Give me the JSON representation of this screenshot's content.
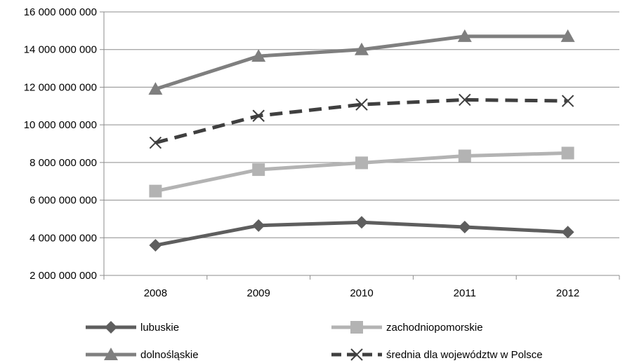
{
  "chart_data": {
    "type": "line",
    "title": "",
    "xlabel": "",
    "ylabel": "",
    "categories": [
      "2008",
      "2009",
      "2010",
      "2011",
      "2012"
    ],
    "ylim": [
      2000000000,
      16000000000
    ],
    "yticks": [
      2000000000,
      4000000000,
      6000000000,
      8000000000,
      10000000000,
      12000000000,
      14000000000,
      16000000000
    ],
    "ytick_labels": [
      "2 000 000 000",
      "4 000 000 000",
      "6 000 000 000",
      "8 000 000 000",
      "10 000 000 000",
      "12 000 000 000",
      "14 000 000 000",
      "16 000 000 000"
    ],
    "grid": "horizontal",
    "legend_position": "bottom",
    "series": [
      {
        "name": "lubuskie",
        "values": [
          3600000000,
          4650000000,
          4820000000,
          4570000000,
          4300000000
        ],
        "color": "#5e5e5e",
        "marker": "diamond",
        "dashed": false
      },
      {
        "name": "zachodniopomorskie",
        "values": [
          6480000000,
          7620000000,
          7980000000,
          8350000000,
          8500000000
        ],
        "color": "#b3b3b3",
        "marker": "square",
        "dashed": false
      },
      {
        "name": "dolnośląskie",
        "values": [
          11900000000,
          13650000000,
          14000000000,
          14700000000,
          14700000000
        ],
        "color": "#7f7f7f",
        "marker": "triangle",
        "dashed": false
      },
      {
        "name": "średnia dla województw w Polsce",
        "values": [
          9050000000,
          10480000000,
          11080000000,
          11330000000,
          11270000000
        ],
        "color": "#3f3f3f",
        "marker": "x",
        "dashed": true
      }
    ]
  }
}
